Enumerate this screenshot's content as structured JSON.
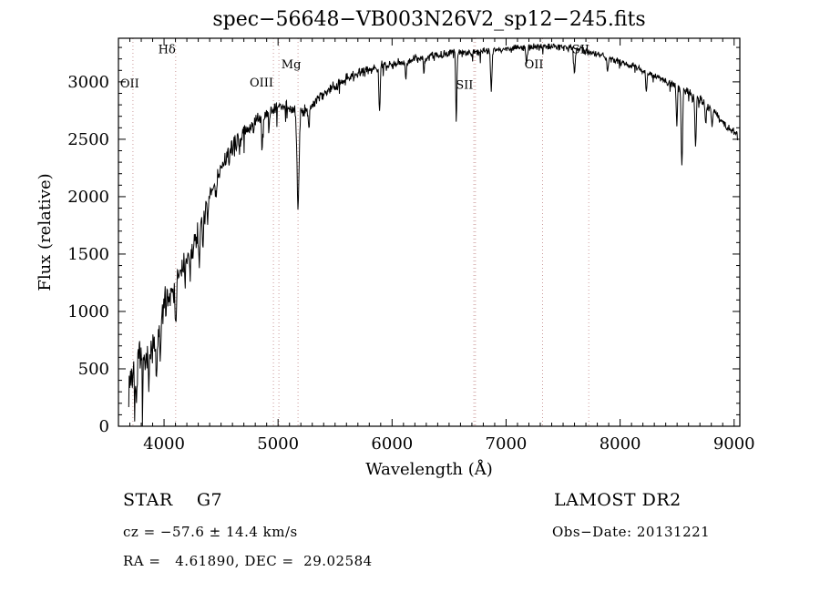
{
  "window": {
    "background": "#ffffff"
  },
  "chart_data": {
    "type": "line",
    "title": "spec−56648−VB003N26V2_sp12−245.fits",
    "xlabel": "Wavelength (Å)",
    "ylabel": "Flux (relative)",
    "xlim": [
      3600,
      9050
    ],
    "ylim": [
      0,
      3380
    ],
    "xticks": [
      4000,
      5000,
      6000,
      7000,
      8000,
      9000
    ],
    "yticks": [
      0,
      500,
      1000,
      1500,
      2000,
      2500,
      3000
    ],
    "x_minor_step": 100,
    "y_minor_step": 100,
    "grid": false,
    "legend": "none",
    "line_color": "#000000",
    "marker_line_color": "#cc9999",
    "spectral_markers": [
      {
        "label": "OII",
        "lines": [
          3727
        ],
        "label_wavelength": 3615,
        "label_flux": 2950,
        "anchor": "start"
      },
      {
        "label": "Hδ",
        "lines": [
          4102
        ],
        "label_wavelength": 4025,
        "label_flux": 3250,
        "anchor": "middle"
      },
      {
        "label": "OIII",
        "lines": [
          4959,
          5007
        ],
        "label_wavelength": 4855,
        "label_flux": 2960,
        "anchor": "middle"
      },
      {
        "label": "Mg",
        "lines": [
          5175
        ],
        "label_wavelength": 5115,
        "label_flux": 3120,
        "anchor": "middle"
      },
      {
        "label": "SII",
        "lines": [
          6717,
          6731
        ],
        "label_wavelength": 6635,
        "label_flux": 2940,
        "anchor": "middle"
      },
      {
        "label": "OII",
        "lines": [
          7320
        ],
        "label_wavelength": 7245,
        "label_flux": 3120,
        "anchor": "middle"
      },
      {
        "label": "SII",
        "lines": [
          7725
        ],
        "label_wavelength": 7655,
        "label_flux": 3250,
        "anchor": "middle"
      }
    ],
    "spectrum": {
      "start": 3690,
      "end": 9030,
      "step": 4,
      "noise_seed": 7,
      "continuum": [
        [
          3690,
          380
        ],
        [
          3730,
          480
        ],
        [
          3770,
          560
        ],
        [
          3810,
          520
        ],
        [
          3850,
          560
        ],
        [
          3900,
          680
        ],
        [
          3950,
          820
        ],
        [
          4000,
          1060
        ],
        [
          4060,
          1180
        ],
        [
          4120,
          1280
        ],
        [
          4180,
          1400
        ],
        [
          4250,
          1550
        ],
        [
          4320,
          1750
        ],
        [
          4400,
          2000
        ],
        [
          4480,
          2200
        ],
        [
          4560,
          2350
        ],
        [
          4650,
          2500
        ],
        [
          4750,
          2600
        ],
        [
          4850,
          2680
        ],
        [
          4950,
          2760
        ],
        [
          5050,
          2790
        ],
        [
          5150,
          2740
        ],
        [
          5250,
          2760
        ],
        [
          5350,
          2860
        ],
        [
          5450,
          2940
        ],
        [
          5550,
          3000
        ],
        [
          5700,
          3070
        ],
        [
          5850,
          3130
        ],
        [
          6000,
          3160
        ],
        [
          6200,
          3200
        ],
        [
          6400,
          3230
        ],
        [
          6600,
          3255
        ],
        [
          6800,
          3270
        ],
        [
          7000,
          3290
        ],
        [
          7200,
          3300
        ],
        [
          7450,
          3310
        ],
        [
          7600,
          3295
        ],
        [
          7750,
          3260
        ],
        [
          7900,
          3210
        ],
        [
          8050,
          3160
        ],
        [
          8200,
          3100
        ],
        [
          8350,
          3030
        ],
        [
          8500,
          2960
        ],
        [
          8650,
          2890
        ],
        [
          8800,
          2760
        ],
        [
          8950,
          2600
        ],
        [
          9030,
          2530
        ]
      ],
      "noise_profile": [
        [
          3690,
          230
        ],
        [
          3800,
          210
        ],
        [
          3900,
          190
        ],
        [
          4000,
          160
        ],
        [
          4200,
          140
        ],
        [
          4400,
          115
        ],
        [
          4700,
          95
        ],
        [
          5000,
          80
        ],
        [
          5300,
          70
        ],
        [
          5700,
          58
        ],
        [
          6000,
          50
        ],
        [
          6500,
          44
        ],
        [
          7000,
          38
        ],
        [
          7500,
          36
        ],
        [
          8000,
          38
        ],
        [
          8500,
          40
        ],
        [
          9030,
          46
        ]
      ],
      "absorption_features": [
        [
          3750,
          260,
          9
        ],
        [
          3933,
          380,
          7
        ],
        [
          3968,
          340,
          6
        ],
        [
          4102,
          320,
          6
        ],
        [
          4227,
          200,
          5
        ],
        [
          4310,
          220,
          6
        ],
        [
          4340,
          260,
          5
        ],
        [
          4383,
          180,
          5
        ],
        [
          4455,
          150,
          5
        ],
        [
          4861,
          300,
          5
        ],
        [
          4920,
          150,
          5
        ],
        [
          5175,
          800,
          9
        ],
        [
          5270,
          200,
          6
        ],
        [
          5890,
          400,
          6
        ],
        [
          6122,
          160,
          5
        ],
        [
          6280,
          140,
          5
        ],
        [
          6563,
          580,
          5
        ],
        [
          6870,
          340,
          6
        ],
        [
          7180,
          150,
          6
        ],
        [
          7600,
          220,
          7
        ],
        [
          7890,
          140,
          5
        ],
        [
          8230,
          190,
          5
        ],
        [
          8498,
          330,
          5
        ],
        [
          8542,
          680,
          6
        ],
        [
          8662,
          430,
          6
        ],
        [
          8750,
          170,
          5
        ],
        [
          8806,
          150,
          5
        ]
      ]
    }
  },
  "annotations": {
    "class_line": "STAR    G7",
    "survey": "LAMOST DR2",
    "cz_line": "cz = −57.6 ± 14.4 km/s",
    "obs_date_line": "Obs−Date: 20131221",
    "coord_line": "RA =   4.61890, DEC =  29.02584"
  }
}
